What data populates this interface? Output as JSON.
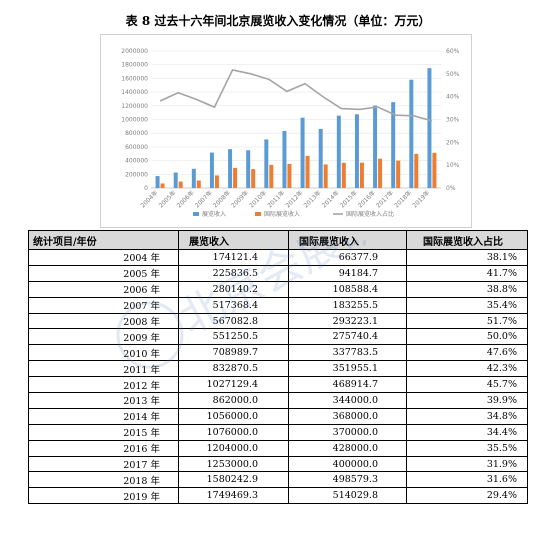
{
  "title": "表 8  过去十六年间北京展览收入变化情况（单位：万元）",
  "table": {
    "headers": [
      "统计项目/年份",
      "展览收入",
      "国际展览收入",
      "国际展览收入占比"
    ],
    "rows": [
      [
        "2004 年",
        "174121.4",
        "66377.9",
        "38.1%"
      ],
      [
        "2005 年",
        "225836.5",
        "94184.7",
        "41.7%"
      ],
      [
        "2006 年",
        "280140.2",
        "108588.4",
        "38.8%"
      ],
      [
        "2007 年",
        "517368.4",
        "183255.5",
        "35.4%"
      ],
      [
        "2008 年",
        "567082.8",
        "293223.1",
        "51.7%"
      ],
      [
        "2009 年",
        "551250.5",
        "275740.4",
        "50.0%"
      ],
      [
        "2010 年",
        "708989.7",
        "337783.5",
        "47.6%"
      ],
      [
        "2011 年",
        "832870.5",
        "351955.1",
        "42.3%"
      ],
      [
        "2012 年",
        "1027129.4",
        "468914.7",
        "45.7%"
      ],
      [
        "2013 年",
        "862000.0",
        "344000.0",
        "39.9%"
      ],
      [
        "2014 年",
        "1056000.0",
        "368000.0",
        "34.8%"
      ],
      [
        "2015 年",
        "1076000.0",
        "370000.0",
        "34.4%"
      ],
      [
        "2016 年",
        "1204000.0",
        "428000.0",
        "35.5%"
      ],
      [
        "2017 年",
        "1253000.0",
        "400000.0",
        "31.9%"
      ],
      [
        "2018 年",
        "1580242.9",
        "498579.3",
        "31.6%"
      ],
      [
        "2019 年",
        "1749469.3",
        "514029.8",
        "29.4%"
      ]
    ]
  },
  "chart_data": {
    "type": "bar",
    "categories": [
      "2004年",
      "2005年",
      "2006年",
      "2007年",
      "2008年",
      "2009年",
      "2010年",
      "2011年",
      "2012年",
      "2013年",
      "2014年",
      "2015年",
      "2016年",
      "2017年",
      "2018年",
      "2019年"
    ],
    "series": [
      {
        "name": "展览收入",
        "type": "bar",
        "axis": "left",
        "color": "#5b9bd5",
        "values": [
          174121.4,
          225836.5,
          280140.2,
          517368.4,
          567082.8,
          551250.5,
          708989.7,
          832870.5,
          1027129.4,
          862000.0,
          1056000.0,
          1076000.0,
          1204000.0,
          1253000.0,
          1580242.9,
          1749469.3
        ]
      },
      {
        "name": "国际展览收入",
        "type": "bar",
        "axis": "left",
        "color": "#ed7d31",
        "values": [
          66377.9,
          94184.7,
          108588.4,
          183255.5,
          293223.1,
          275740.4,
          337783.5,
          351955.1,
          468914.7,
          344000.0,
          368000.0,
          370000.0,
          428000.0,
          400000.0,
          498579.3,
          514029.8
        ]
      },
      {
        "name": "国际展览收入占比",
        "type": "line",
        "axis": "right",
        "color": "#a5a5a5",
        "values": [
          38.1,
          41.7,
          38.8,
          35.4,
          51.7,
          50.0,
          47.6,
          42.3,
          45.7,
          39.9,
          34.8,
          34.4,
          35.5,
          31.9,
          31.6,
          29.4
        ]
      }
    ],
    "y_left": {
      "range": [
        0,
        2000000
      ],
      "ticks": [
        "0",
        "200000",
        "400000",
        "600000",
        "800000",
        "1000000",
        "1200000",
        "1400000",
        "1600000",
        "1800000",
        "2000000"
      ]
    },
    "y_right": {
      "range": [
        0,
        60
      ],
      "ticks": [
        "0%",
        "10%",
        "20%",
        "30%",
        "40%",
        "50%",
        "60%"
      ]
    },
    "legend_position": "bottom",
    "grid": true,
    "watermark": "北京会展研究院"
  }
}
